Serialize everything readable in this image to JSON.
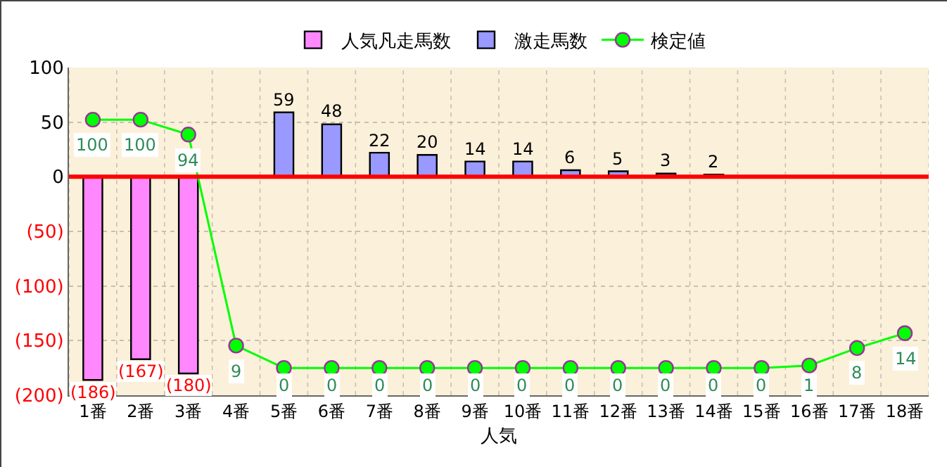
{
  "chart_data": {
    "type": "bar",
    "xlabel": "人気",
    "categories": [
      "1番",
      "2番",
      "3番",
      "4番",
      "5番",
      "6番",
      "7番",
      "8番",
      "9番",
      "10番",
      "11番",
      "12番",
      "13番",
      "14番",
      "15番",
      "16番",
      "17番",
      "18番"
    ],
    "series": [
      {
        "name": "人気凡走馬数",
        "color": "#ff88ff",
        "values": [
          -186,
          -167,
          -180,
          null,
          null,
          null,
          null,
          null,
          null,
          null,
          null,
          null,
          null,
          null,
          null,
          null,
          null,
          null
        ],
        "value_labels": [
          "(186)",
          "(167)",
          "(180)",
          null,
          null,
          null,
          null,
          null,
          null,
          null,
          null,
          null,
          null,
          null,
          null,
          null,
          null,
          null
        ]
      },
      {
        "name": "激走馬数",
        "color": "#9999ff",
        "values": [
          null,
          null,
          null,
          null,
          59,
          48,
          22,
          20,
          14,
          14,
          6,
          5,
          3,
          2,
          null,
          null,
          null,
          null
        ],
        "value_labels": [
          null,
          null,
          null,
          null,
          "59",
          "48",
          "22",
          "20",
          "14",
          "14",
          "6",
          "5",
          "3",
          "2",
          null,
          null,
          null,
          null
        ]
      },
      {
        "name": "検定値",
        "type": "line",
        "axis": "y2",
        "color": "#00ff00",
        "values": [
          100,
          100,
          94,
          9,
          0,
          0,
          0,
          0,
          0,
          0,
          0,
          0,
          0,
          0,
          0,
          1,
          8,
          14
        ],
        "value_labels": [
          "100",
          "100",
          "94",
          "9",
          "0",
          "0",
          "0",
          "0",
          "0",
          "0",
          "0",
          "0",
          "0",
          "0",
          "0",
          "1",
          "8",
          "14"
        ]
      }
    ],
    "ylim": [
      -200,
      100
    ],
    "yticks": [
      {
        "value": -200,
        "label": "(200)"
      },
      {
        "value": -150,
        "label": "(150)"
      },
      {
        "value": -100,
        "label": "(100)"
      },
      {
        "value": -50,
        "label": "(50)"
      },
      0,
      50,
      100
    ],
    "y2lim": [
      -11,
      121
    ],
    "ref_lines": [
      {
        "axis": "y",
        "value": 0,
        "color": "#ff0000"
      }
    ],
    "grid": true,
    "legend": "top",
    "marker": "circle",
    "line_style": "solid"
  }
}
